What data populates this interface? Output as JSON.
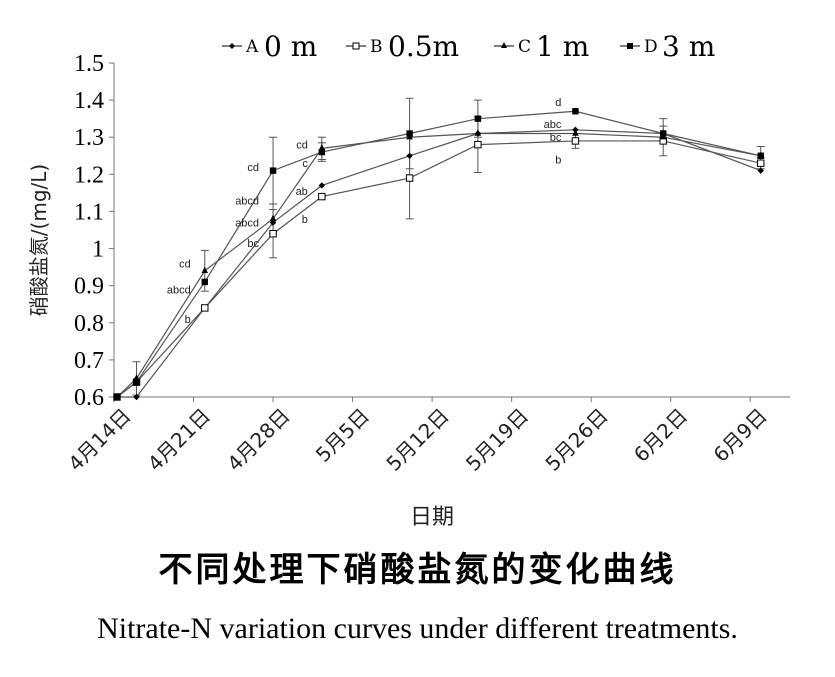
{
  "chart_data": {
    "type": "line",
    "xlabel": "日期",
    "ylabel": "硝酸盐氮/(mg/L)",
    "ylim": [
      0.6,
      1.5
    ],
    "yticks": [
      "0.6",
      "0.7",
      "0.8",
      "0.9",
      "1",
      "1.1",
      "1.2",
      "1.3",
      "1.4",
      "1.5"
    ],
    "categories": [
      "4月14日",
      "4月21日",
      "4月28日",
      "5月5日",
      "5月12日",
      "5月19日",
      "5月26日",
      "6月2日",
      "6月9日"
    ],
    "x": [
      0,
      2,
      9,
      16,
      21,
      30,
      37,
      47,
      56,
      66
    ],
    "grid": false,
    "legend_position": "top",
    "series": [
      {
        "name": "A",
        "label": "0 m",
        "marker": "diamond",
        "color": "#000000",
        "values": [
          0.6,
          0.6,
          0.84,
          1.07,
          1.17,
          1.25,
          1.31,
          1.32,
          1.31,
          1.21
        ],
        "errors": [
          0,
          0,
          0,
          0,
          0,
          0,
          0,
          0,
          0,
          0
        ]
      },
      {
        "name": "B",
        "label": "0.5m",
        "marker": "square-open",
        "color": "#000000",
        "values": [
          0.6,
          0.64,
          0.84,
          1.04,
          1.14,
          1.19,
          1.28,
          1.29,
          1.29,
          1.23
        ],
        "errors": [
          0,
          0,
          0,
          0.065,
          0,
          0.11,
          0.075,
          0.02,
          0,
          0.015
        ]
      },
      {
        "name": "C",
        "label": "1 m",
        "marker": "triangle",
        "color": "#000000",
        "values": [
          0.6,
          0.65,
          0.94,
          1.08,
          1.27,
          1.3,
          1.31,
          1.31,
          1.3,
          1.25
        ],
        "errors": [
          0,
          0.045,
          0.055,
          0.04,
          0.03,
          0,
          0,
          0,
          0.05,
          0.025
        ]
      },
      {
        "name": "D",
        "label": "3 m",
        "marker": "square",
        "color": "#000000",
        "values": [
          0.6,
          0.64,
          0.91,
          1.21,
          1.26,
          1.31,
          1.35,
          1.37,
          1.31,
          1.25
        ],
        "errors": [
          0,
          0,
          0,
          0.09,
          0.025,
          0.095,
          0.05,
          0,
          0.02,
          0
        ]
      }
    ],
    "annotations": [
      {
        "text": "cd",
        "x": 9,
        "y": 0.96
      },
      {
        "text": "abcd",
        "x": 9,
        "y": 0.89
      },
      {
        "text": "b",
        "x": 9,
        "y": 0.81
      },
      {
        "text": "cd",
        "x": 16,
        "y": 1.22
      },
      {
        "text": "abcd",
        "x": 16,
        "y": 1.13
      },
      {
        "text": "abcd",
        "x": 16,
        "y": 1.07
      },
      {
        "text": "bc",
        "x": 16,
        "y": 1.015
      },
      {
        "text": "cd",
        "x": 21,
        "y": 1.28
      },
      {
        "text": "c",
        "x": 21,
        "y": 1.23
      },
      {
        "text": "ab",
        "x": 21,
        "y": 1.155
      },
      {
        "text": "b",
        "x": 21,
        "y": 1.08
      },
      {
        "text": "d",
        "x": 47,
        "y": 1.395
      },
      {
        "text": "abc",
        "x": 47,
        "y": 1.335
      },
      {
        "text": "bc",
        "x": 47,
        "y": 1.3
      },
      {
        "text": "b",
        "x": 47,
        "y": 1.24
      }
    ]
  },
  "caption": {
    "zh": "不同处理下硝酸盐氮的变化曲线",
    "en": "Nitrate-N variation curves under different treatments."
  }
}
